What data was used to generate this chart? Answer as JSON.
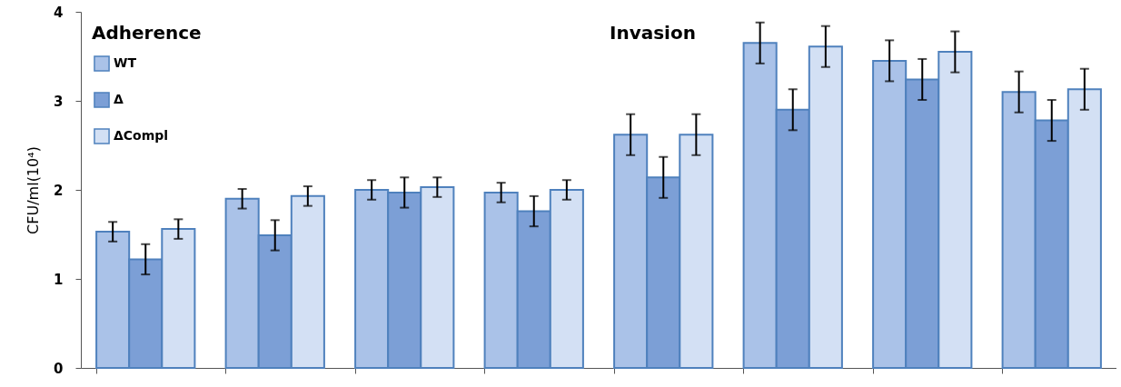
{
  "chart_data": {
    "type": "bar",
    "ylabel": "CFU/ml(10⁴)",
    "annotations": [
      "Adherence",
      "Invasion"
    ],
    "categories": [
      null,
      null,
      null,
      null,
      null,
      null,
      null,
      null
    ],
    "ylim": [
      0,
      4
    ],
    "yticks": [
      0,
      1,
      2,
      3,
      4
    ],
    "legend": "top left",
    "tick_labels": "y",
    "series": [
      {
        "name": "WT",
        "color": "#aac2e8",
        "values": [
          1.53,
          1.9,
          2.0,
          1.97,
          2.62,
          3.65,
          3.45,
          3.1
        ],
        "errors": [
          0.11,
          0.11,
          0.11,
          0.11,
          0.23,
          0.23,
          0.23,
          0.23
        ]
      },
      {
        "name": "Δ",
        "color": "#7c9fd6",
        "values": [
          1.22,
          1.49,
          1.97,
          1.76,
          2.14,
          2.9,
          3.24,
          2.78
        ],
        "errors": [
          0.17,
          0.17,
          0.17,
          0.17,
          0.23,
          0.23,
          0.23,
          0.23
        ]
      },
      {
        "name": "ΔCompl",
        "color": "#d3e0f4",
        "values": [
          1.56,
          1.93,
          2.03,
          2.0,
          2.62,
          3.61,
          3.55,
          3.13
        ],
        "errors": [
          0.11,
          0.11,
          0.11,
          0.11,
          0.23,
          0.23,
          0.23,
          0.23
        ]
      }
    ]
  }
}
